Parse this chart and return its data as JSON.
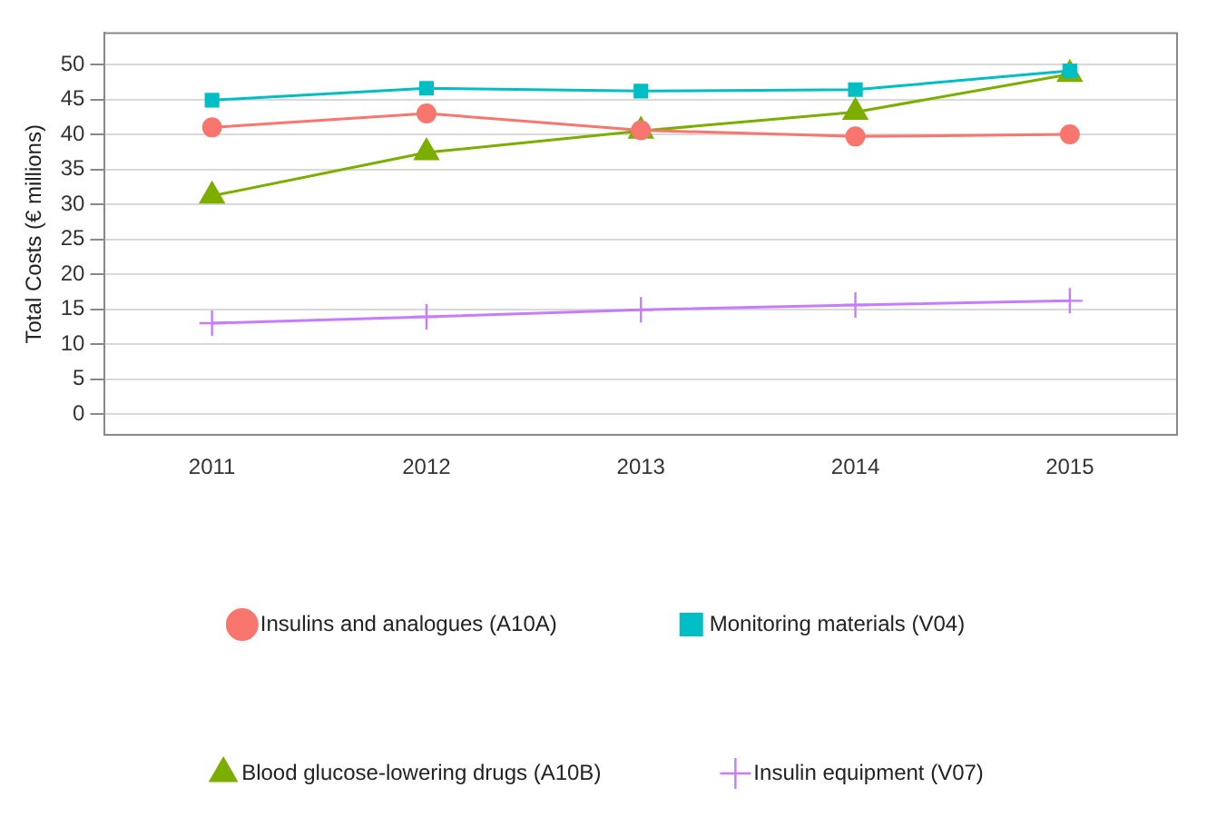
{
  "chart_data": {
    "type": "line",
    "ylabel": "Total Costs (€ millions)",
    "categories": [
      "2011",
      "2012",
      "2013",
      "2014",
      "2015"
    ],
    "series": [
      {
        "name": "Insulins and analogues (A10A)",
        "color": "#f8766d",
        "marker": "circle",
        "values": [
          41.0,
          43.0,
          40.6,
          39.7,
          40.0
        ]
      },
      {
        "name": "Monitoring materials (V04)",
        "color": "#00bfc4",
        "marker": "square",
        "values": [
          44.9,
          46.6,
          46.2,
          46.4,
          49.1
        ]
      },
      {
        "name": "Blood glucose-lowering drugs (A10B)",
        "color": "#7cae00",
        "marker": "triangle",
        "values": [
          31.2,
          37.4,
          40.5,
          43.2,
          48.6
        ]
      },
      {
        "name": "Insulin equipment (V07)",
        "color": "#c77cff",
        "marker": "cross",
        "values": [
          13.0,
          13.9,
          14.9,
          15.6,
          16.2
        ]
      }
    ],
    "ylim": [
      -3,
      54.5
    ],
    "yticks": [
      0,
      5,
      10,
      15,
      20,
      25,
      30,
      35,
      40,
      45,
      50
    ],
    "grid": "y",
    "legend": "bottom"
  }
}
